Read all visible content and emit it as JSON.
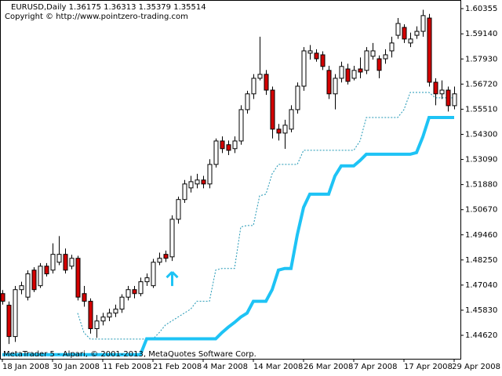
{
  "chart_data": {
    "type": "candlestick",
    "title": "EURUSD,Daily  1.36175 1.36313 1.35379 1.35514",
    "subtitle": "Copyright © http://www.pointzero-trading.com",
    "footer": "MetaTrader 5 - Alpari, © 2001-2013, MetaQuotes Software Corp.",
    "up_color": "#ffffff",
    "down_color": "#d40000",
    "ylim": [
      1.4349,
      1.6077
    ],
    "yticks": [
      1.60355,
      {
        "value": 1.5914,
        "label": "1.59140"
      },
      {
        "value": 1.5793,
        "label": "1.57930"
      },
      {
        "value": 1.5672,
        "label": "1.56720"
      },
      {
        "value": 1.5551,
        "label": "1.55510"
      },
      {
        "value": 1.543,
        "label": "1.54300"
      },
      {
        "value": 1.5309,
        "label": "1.53090"
      },
      {
        "value": 1.5188,
        "label": "1.51880"
      },
      {
        "value": 1.5067,
        "label": "1.50670"
      },
      {
        "value": 1.4946,
        "label": "1.49460"
      },
      {
        "value": 1.4825,
        "label": "1.48250"
      },
      {
        "value": 1.4704,
        "label": "1.47040"
      },
      {
        "value": 1.4583,
        "label": "1.45830"
      },
      {
        "value": 1.4462,
        "label": "1.44620"
      }
    ],
    "categories": [
      "18 Jan 2008",
      null,
      null,
      null,
      null,
      null,
      null,
      null,
      "30 Jan 2008",
      null,
      null,
      null,
      null,
      null,
      null,
      null,
      "11 Feb 2008",
      null,
      null,
      null,
      null,
      null,
      null,
      null,
      "21 Feb 2008",
      null,
      null,
      null,
      null,
      null,
      null,
      null,
      "4 Mar 2008",
      null,
      null,
      null,
      null,
      null,
      null,
      null,
      "14 Mar 2008",
      null,
      null,
      null,
      null,
      null,
      null,
      null,
      "26 Mar 2008",
      null,
      null,
      null,
      null,
      null,
      null,
      null,
      "7 Apr 2008",
      null,
      null,
      null,
      null,
      null,
      null,
      null,
      "17 Apr 2008",
      null,
      null,
      null,
      null,
      null,
      null,
      null,
      "29 Apr 2008"
    ],
    "candles": [
      [
        1.4663,
        1.468,
        1.461,
        1.4626
      ],
      [
        1.4607,
        1.4625,
        1.442,
        1.4456
      ],
      [
        1.4456,
        1.47,
        1.443,
        1.4682
      ],
      [
        1.4682,
        1.472,
        1.466,
        1.4701
      ],
      [
        1.4646,
        1.4775,
        1.463,
        1.4758
      ],
      [
        1.4776,
        1.479,
        1.467,
        1.4682
      ],
      [
        1.4701,
        1.481,
        1.469,
        1.4795
      ],
      [
        1.4795,
        1.481,
        1.4745,
        1.4758
      ],
      [
        1.4776,
        1.4905,
        1.476,
        1.4852
      ],
      [
        1.4814,
        1.494,
        1.48,
        1.4852
      ],
      [
        1.4852,
        1.488,
        1.476,
        1.4776
      ],
      [
        1.4795,
        1.485,
        1.478,
        1.4833
      ],
      [
        1.4833,
        1.4845,
        1.463,
        1.4646
      ],
      [
        1.4663,
        1.47,
        1.46,
        1.4626
      ],
      [
        1.4626,
        1.464,
        1.447,
        1.4494
      ],
      [
        1.4494,
        1.456,
        1.445,
        1.4531
      ],
      [
        1.4531,
        1.457,
        1.451,
        1.455
      ],
      [
        1.455,
        1.459,
        1.453,
        1.4569
      ],
      [
        1.4569,
        1.461,
        1.455,
        1.4588
      ],
      [
        1.4588,
        1.466,
        1.457,
        1.4646
      ],
      [
        1.4646,
        1.47,
        1.463,
        1.4682
      ],
      [
        1.4682,
        1.47,
        1.464,
        1.4663
      ],
      [
        1.4663,
        1.474,
        1.465,
        1.472
      ],
      [
        1.472,
        1.476,
        1.47,
        1.4739
      ],
      [
        1.4701,
        1.483,
        1.469,
        1.4814
      ],
      [
        1.4814,
        1.486,
        1.48,
        1.4833
      ],
      [
        1.4852,
        1.487,
        1.4815,
        1.4833
      ],
      [
        1.484,
        1.504,
        1.482,
        1.5021
      ],
      [
        1.5021,
        1.513,
        1.5,
        1.5116
      ],
      [
        1.5116,
        1.521,
        1.51,
        1.5191
      ],
      [
        1.5172,
        1.523,
        1.515,
        1.5202
      ],
      [
        1.5191,
        1.524,
        1.517,
        1.521
      ],
      [
        1.521,
        1.523,
        1.517,
        1.5191
      ],
      [
        1.5191,
        1.531,
        1.517,
        1.5285
      ],
      [
        1.5285,
        1.541,
        1.527,
        1.5398
      ],
      [
        1.5398,
        1.542,
        1.534,
        1.5361
      ],
      [
        1.538,
        1.54,
        1.533,
        1.5353
      ],
      [
        1.5361,
        1.542,
        1.534,
        1.5398
      ],
      [
        1.5398,
        1.557,
        1.538,
        1.5549
      ],
      [
        1.5549,
        1.564,
        1.553,
        1.5625
      ],
      [
        1.5625,
        1.572,
        1.56,
        1.57
      ],
      [
        1.57,
        1.59,
        1.569,
        1.5719
      ],
      [
        1.5719,
        1.574,
        1.562,
        1.5643
      ],
      [
        1.5643,
        1.566,
        1.541,
        1.5455
      ],
      [
        1.5455,
        1.548,
        1.54,
        1.5436
      ],
      [
        1.5436,
        1.55,
        1.536,
        1.5474
      ],
      [
        1.5455,
        1.557,
        1.544,
        1.5549
      ],
      [
        1.5549,
        1.568,
        1.553,
        1.5662
      ],
      [
        1.5662,
        1.585,
        1.564,
        1.5832
      ],
      [
        1.5821,
        1.586,
        1.579,
        1.5832
      ],
      [
        1.5821,
        1.584,
        1.578,
        1.5794
      ],
      [
        1.5813,
        1.583,
        1.574,
        1.5757
      ],
      [
        1.5738,
        1.576,
        1.56,
        1.5625
      ],
      [
        1.5625,
        1.572,
        1.555,
        1.57
      ],
      [
        1.57,
        1.578,
        1.568,
        1.5757
      ],
      [
        1.5745,
        1.577,
        1.567,
        1.5685
      ],
      [
        1.57,
        1.576,
        1.569,
        1.5738
      ],
      [
        1.5745,
        1.58,
        1.57,
        1.573
      ],
      [
        1.5738,
        1.585,
        1.572,
        1.5832
      ],
      [
        1.5806,
        1.587,
        1.579,
        1.5832
      ],
      [
        1.5794,
        1.581,
        1.57,
        1.5738
      ],
      [
        1.5794,
        1.584,
        1.577,
        1.5813
      ],
      [
        1.5832,
        1.59,
        1.58,
        1.587
      ],
      [
        1.5907,
        1.599,
        1.589,
        1.5964
      ],
      [
        1.5945,
        1.596,
        1.587,
        1.5889
      ],
      [
        1.587,
        1.592,
        1.585,
        1.5889
      ],
      [
        1.5907,
        1.595,
        1.589,
        1.5926
      ],
      [
        1.5926,
        1.603,
        1.59,
        1.6002
      ],
      [
        1.599,
        1.601,
        1.566,
        1.5681
      ],
      [
        1.5681,
        1.57,
        1.557,
        1.5625
      ],
      [
        1.5625,
        1.569,
        1.56,
        1.5643
      ],
      [
        1.5643,
        1.566,
        1.554,
        1.5568
      ],
      [
        1.5568,
        1.566,
        1.555,
        1.5625
      ]
    ],
    "series": [
      {
        "color": "#1e96b4",
        "style": "dashed",
        "width": 1,
        "values": [
          null,
          null,
          null,
          null,
          null,
          null,
          null,
          null,
          null,
          null,
          null,
          null,
          1.4569,
          1.4475,
          1.4444,
          1.4444,
          1.4444,
          1.4444,
          1.4444,
          1.4444,
          1.4444,
          1.4444,
          1.4444,
          1.4444,
          1.4444,
          1.4475,
          1.4512,
          1.4531,
          1.455,
          1.4569,
          1.4588,
          1.4626,
          1.4626,
          1.4626,
          1.4776,
          1.4784,
          1.4784,
          1.4784,
          1.4984,
          1.4991,
          1.4991,
          1.5134,
          1.5142,
          1.524,
          1.5285,
          1.5285,
          1.5285,
          1.5285,
          1.5353,
          1.5353,
          1.5353,
          1.5353,
          1.5353,
          1.5353,
          1.5353,
          1.5353,
          1.5353,
          1.5398,
          1.5511,
          1.5511,
          1.5511,
          1.5511,
          1.5511,
          1.5511,
          1.5549,
          1.5632,
          1.5632,
          1.5632,
          1.5632,
          1.5606,
          1.5606,
          1.5606,
          1.5606
        ]
      },
      {
        "color": "#1ec3f5",
        "style": "solid",
        "width": 4,
        "values": [
          1.4369,
          1.4369,
          1.4369,
          1.4369,
          1.4369,
          1.4369,
          1.4369,
          1.4369,
          1.4369,
          1.4369,
          1.4369,
          1.4369,
          1.4369,
          1.4369,
          1.4369,
          1.4369,
          1.4369,
          1.4369,
          1.4369,
          1.4369,
          1.4369,
          1.4369,
          1.4369,
          1.4445,
          1.4445,
          1.4445,
          1.4445,
          1.4445,
          1.4445,
          1.4445,
          1.4445,
          1.4445,
          1.4445,
          1.4445,
          1.4445,
          1.4475,
          1.4501,
          1.4524,
          1.455,
          1.4569,
          1.4626,
          1.4626,
          1.4626,
          1.4682,
          1.4776,
          1.4784,
          1.4784,
          1.4946,
          1.5078,
          1.5142,
          1.5142,
          1.5142,
          1.5142,
          1.5229,
          1.5278,
          1.5278,
          1.5278,
          1.5304,
          1.5334,
          1.5334,
          1.5334,
          1.5334,
          1.5334,
          1.5334,
          1.5334,
          1.5334,
          1.5342,
          1.5417,
          1.5511,
          1.5511,
          1.5511,
          1.5511,
          1.5511
        ]
      }
    ],
    "buy_arrows": [
      27
    ],
    "arrow_color": "#1ec3f5"
  }
}
